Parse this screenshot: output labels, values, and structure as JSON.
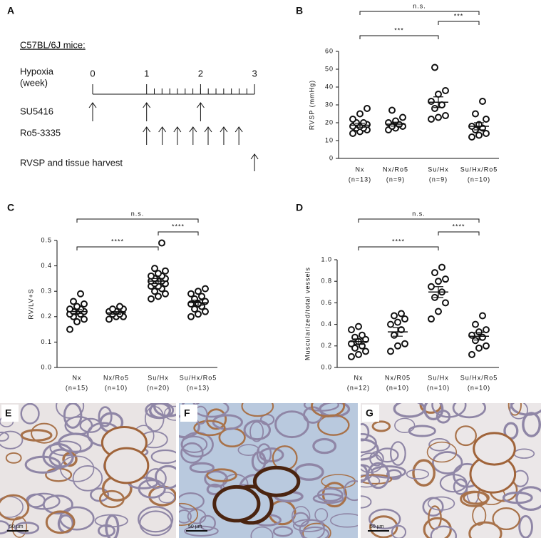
{
  "timeline": {
    "label": "A",
    "heading": "C57BL/6J mice:",
    "axis_label": [
      "Hypoxia",
      "(week)"
    ],
    "weeks": [
      0,
      1,
      2,
      3
    ],
    "rows": [
      {
        "name": "SU5416",
        "arrows": [
          0,
          1,
          2
        ]
      },
      {
        "name": "Ro5-3335",
        "arrows": [
          1,
          1.29,
          1.57,
          1.86,
          2.14,
          2.43,
          2.71
        ]
      },
      {
        "name": "RVSP and tissue harvest",
        "arrows": [
          3
        ]
      }
    ]
  },
  "chart_data": [
    {
      "type": "strip",
      "label": "B",
      "ylabel": "RVSP (mmHg)",
      "categories": [
        "Nx",
        "Nx/Ro5",
        "Su/Hx",
        "Su/Hx/Ro5"
      ],
      "n_labels": [
        "(n=13)",
        "(n=9)",
        "(n=9)",
        "(n=10)"
      ],
      "points": [
        [
          14,
          15,
          16,
          17,
          17,
          18,
          18,
          19,
          20,
          20,
          22,
          25,
          28
        ],
        [
          16,
          17,
          18,
          18,
          19,
          20,
          21,
          23,
          27
        ],
        [
          22,
          23,
          24,
          28,
          30,
          32,
          36,
          38,
          51
        ],
        [
          12,
          13,
          14,
          16,
          17,
          18,
          19,
          22,
          25,
          32
        ]
      ],
      "means": [
        18.6,
        19.2,
        31.5,
        18
      ],
      "sems": [
        1.1,
        1.1,
        3,
        2
      ],
      "ylim": [
        0,
        60
      ],
      "yticks": [
        0,
        10,
        20,
        30,
        40,
        50,
        60
      ],
      "brackets": [
        {
          "from": 0,
          "to": 3,
          "text": "n.s."
        },
        {
          "from": 2,
          "to": 3,
          "text": "***"
        },
        {
          "from": 0,
          "to": 2,
          "text": "***"
        }
      ]
    },
    {
      "type": "strip",
      "label": "C",
      "ylabel": "RV/LV+S",
      "categories": [
        "Nx",
        "Nx/Ro5",
        "Su/Hx",
        "Su/Hx/Ro5"
      ],
      "n_labels": [
        "(n=15)",
        "(n=10)",
        "(n=20)",
        "(n=13)"
      ],
      "points": [
        [
          0.15,
          0.18,
          0.19,
          0.2,
          0.21,
          0.21,
          0.22,
          0.22,
          0.22,
          0.23,
          0.23,
          0.24,
          0.25,
          0.26,
          0.29
        ],
        [
          0.19,
          0.2,
          0.2,
          0.21,
          0.21,
          0.22,
          0.22,
          0.23,
          0.23,
          0.24
        ],
        [
          0.27,
          0.28,
          0.29,
          0.3,
          0.31,
          0.32,
          0.32,
          0.33,
          0.33,
          0.34,
          0.34,
          0.34,
          0.35,
          0.35,
          0.36,
          0.36,
          0.37,
          0.38,
          0.39,
          0.49
        ],
        [
          0.2,
          0.21,
          0.22,
          0.23,
          0.24,
          0.25,
          0.25,
          0.26,
          0.27,
          0.28,
          0.29,
          0.3,
          0.31
        ]
      ],
      "means": [
        0.22,
        0.215,
        0.34,
        0.255
      ],
      "sems": [
        0.008,
        0.005,
        0.01,
        0.01
      ],
      "ylim": [
        0,
        0.5
      ],
      "yticks": [
        {
          "value": 0,
          "label": "0.0"
        },
        0.1,
        0.2,
        0.3,
        0.4,
        0.5
      ],
      "brackets": [
        {
          "from": 0,
          "to": 3,
          "text": "n.s."
        },
        {
          "from": 2,
          "to": 3,
          "text": "****"
        },
        {
          "from": 0,
          "to": 2,
          "text": "****"
        }
      ]
    },
    {
      "type": "strip",
      "label": "D",
      "ylabel": "Muscularized/total vessels",
      "categories": [
        "Nx",
        "Nx/R05",
        "Su/Hx",
        "Su/Hx/Ro5"
      ],
      "n_labels": [
        "(n=12)",
        "(n=10)",
        "(n=10)",
        "(n=10)"
      ],
      "points": [
        [
          0.1,
          0.12,
          0.15,
          0.18,
          0.2,
          0.22,
          0.24,
          0.26,
          0.28,
          0.3,
          0.35,
          0.38
        ],
        [
          0.15,
          0.2,
          0.22,
          0.3,
          0.35,
          0.4,
          0.42,
          0.45,
          0.48,
          0.5
        ],
        [
          0.45,
          0.52,
          0.6,
          0.65,
          0.7,
          0.75,
          0.8,
          0.82,
          0.88,
          0.93
        ],
        [
          0.12,
          0.18,
          0.2,
          0.25,
          0.28,
          0.3,
          0.33,
          0.35,
          0.4,
          0.48
        ]
      ],
      "means": [
        0.24,
        0.33,
        0.7,
        0.29
      ],
      "sems": [
        0.025,
        0.04,
        0.05,
        0.035
      ],
      "ylim": [
        0,
        1
      ],
      "yticks": [
        {
          "value": 0,
          "label": "0.0"
        },
        0.2,
        0.4,
        0.6,
        0.8,
        {
          "value": 1,
          "label": "1.0"
        }
      ],
      "brackets": [
        {
          "from": 0,
          "to": 3,
          "text": "n.s."
        },
        {
          "from": 2,
          "to": 3,
          "text": "****"
        },
        {
          "from": 0,
          "to": 2,
          "text": "****"
        }
      ]
    }
  ],
  "micrographs": [
    {
      "label": "E",
      "scale": "50 µm"
    },
    {
      "label": "F",
      "scale": "50 µm"
    },
    {
      "label": "G",
      "scale": "50 µm"
    }
  ]
}
